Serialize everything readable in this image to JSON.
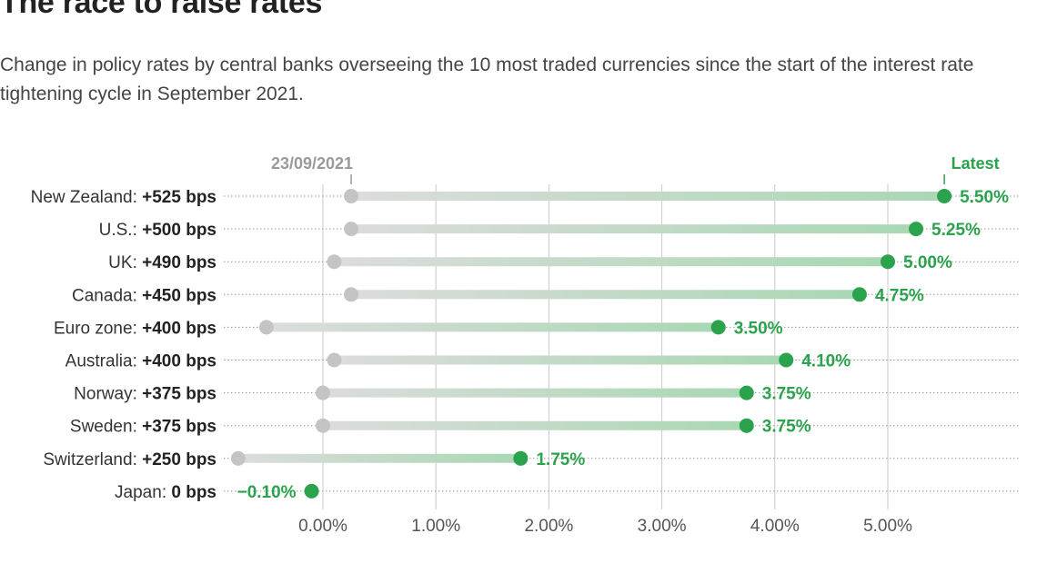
{
  "chart_data": {
    "type": "dumbbell",
    "title": "The race to raise rates",
    "subtitle": "Change in policy rates by central banks overseeing the 10 most traded currencies since the start of the interest rate tightening cycle in September 2021.",
    "start_label": "23/09/2021",
    "end_label": "Latest",
    "xlim": [
      -0.9,
      5.6
    ],
    "ticks": [
      0,
      1,
      2,
      3,
      4,
      5
    ],
    "tick_labels": [
      "0.00%",
      "1.00%",
      "2.00%",
      "3.00%",
      "4.00%",
      "5.00%"
    ],
    "rows": [
      {
        "country": "New Zealand",
        "change": "+525 bps",
        "start": 0.25,
        "latest": 5.5,
        "label": "5.50%"
      },
      {
        "country": "U.S.",
        "change": "+500 bps",
        "start": 0.25,
        "latest": 5.25,
        "label": "5.25%"
      },
      {
        "country": "UK",
        "change": "+490 bps",
        "start": 0.1,
        "latest": 5.0,
        "label": "5.00%"
      },
      {
        "country": "Canada",
        "change": "+450 bps",
        "start": 0.25,
        "latest": 4.75,
        "label": "4.75%"
      },
      {
        "country": "Euro zone",
        "change": "+400 bps",
        "start": -0.5,
        "latest": 3.5,
        "label": "3.50%"
      },
      {
        "country": "Australia",
        "change": "+400 bps",
        "start": 0.1,
        "latest": 4.1,
        "label": "4.10%"
      },
      {
        "country": "Norway",
        "change": "+375 bps",
        "start": 0.0,
        "latest": 3.75,
        "label": "3.75%"
      },
      {
        "country": "Sweden",
        "change": "+375 bps",
        "start": 0.0,
        "latest": 3.75,
        "label": "3.75%"
      },
      {
        "country": "Switzerland",
        "change": "+250 bps",
        "start": -0.75,
        "latest": 1.75,
        "label": "1.75%"
      },
      {
        "country": "Japan",
        "change": "0 bps",
        "start": -0.1,
        "latest": -0.1,
        "label": "−0.10%"
      }
    ],
    "colors": {
      "start": "#c4c4c4",
      "latest": "#2ba24c",
      "bar": "#a9d8b3",
      "grid": "#c8c8c8"
    }
  }
}
